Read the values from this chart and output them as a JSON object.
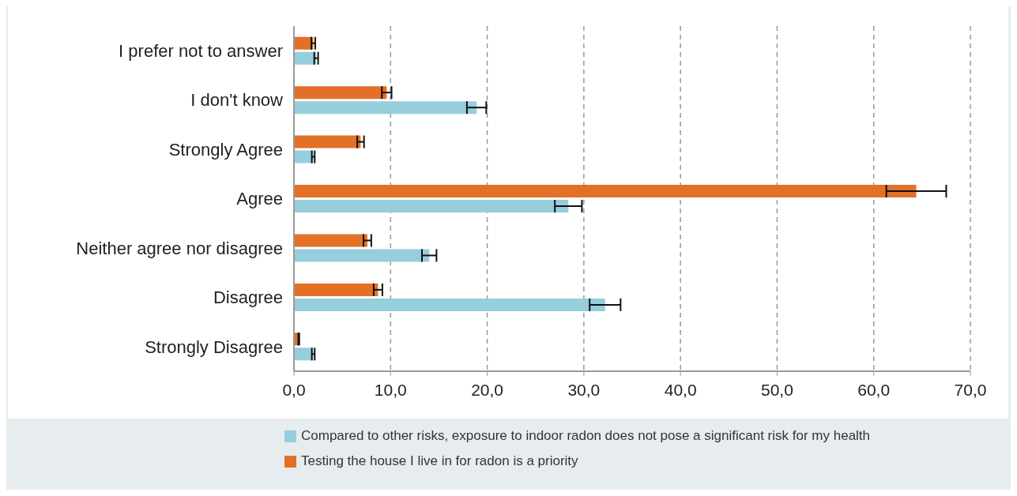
{
  "chart_data": {
    "type": "bar",
    "orientation": "horizontal",
    "categories": [
      "I prefer not to answer",
      "I don't know",
      "Strongly Agree",
      "Agree",
      "Neither agree nor disagree",
      "Disagree",
      "Strongly Disagree"
    ],
    "series": [
      {
        "name": "Compared to other risks, exposure to indoor radon does not pose a significant risk for my health",
        "color": "#96cedc",
        "values": [
          2.3,
          18.9,
          2.0,
          28.4,
          14.0,
          32.2,
          2.0
        ],
        "errors": [
          0.2,
          1.0,
          0.15,
          1.4,
          0.75,
          1.6,
          0.15
        ]
      },
      {
        "name": "Testing the house I live in for radon is a priority",
        "color": "#e37026",
        "values": [
          2.0,
          9.6,
          6.9,
          64.4,
          7.6,
          8.7,
          0.5
        ],
        "errors": [
          0.2,
          0.5,
          0.35,
          3.1,
          0.4,
          0.45,
          0.05
        ]
      }
    ],
    "xlim": [
      0,
      70
    ],
    "xticks": [
      {
        "value": 0,
        "label": "0,0"
      },
      {
        "value": 10,
        "label": "10,0"
      },
      {
        "value": 20,
        "label": "20,0"
      },
      {
        "value": 30,
        "label": "30,0"
      },
      {
        "value": 40,
        "label": "40,0"
      },
      {
        "value": 50,
        "label": "50,0"
      },
      {
        "value": 60,
        "label": "60,0"
      },
      {
        "value": 70,
        "label": "70,0"
      }
    ],
    "grid": "x",
    "legend": "bottom"
  }
}
